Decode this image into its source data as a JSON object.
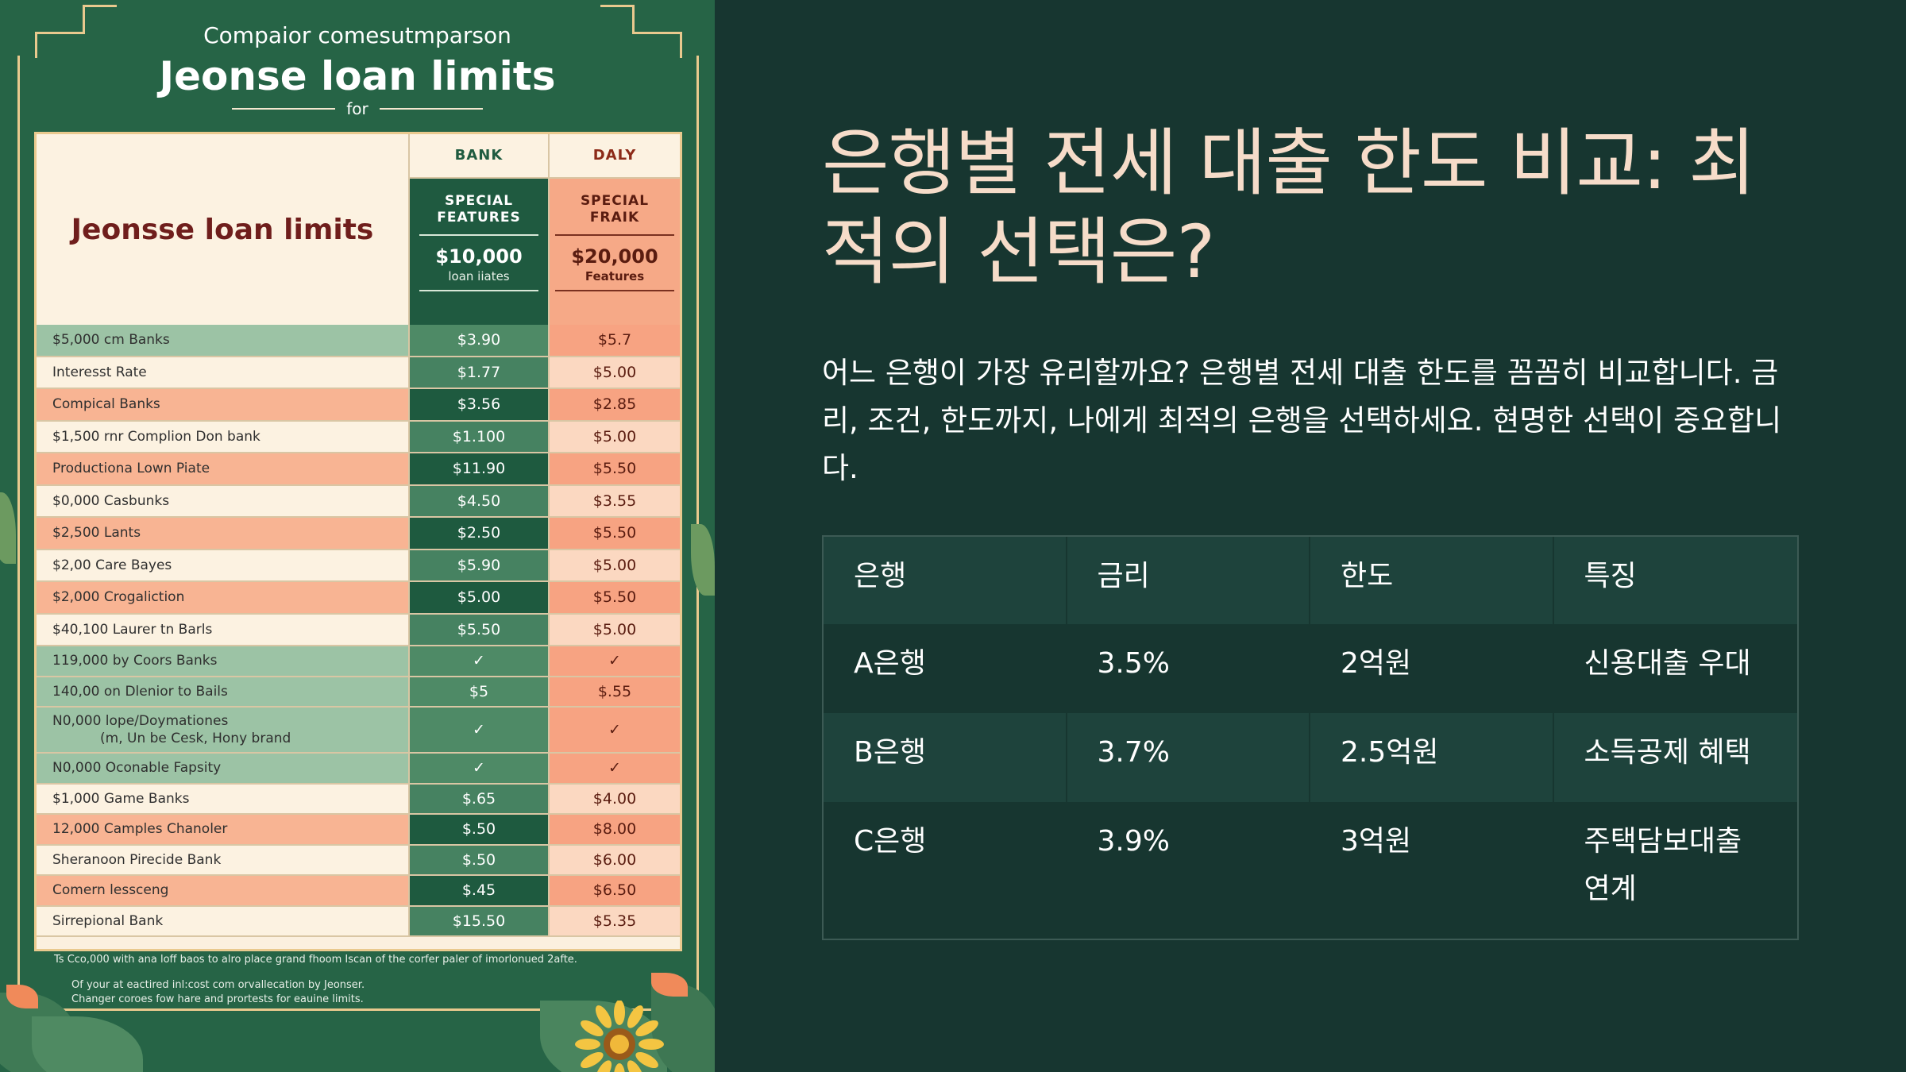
{
  "poster": {
    "subtitle": "Compaior comesutmparson",
    "title": "Jeonse loan limits",
    "for_text": "for",
    "table_title": "Jeonsse loan limits",
    "columns": {
      "bank": {
        "name": "BANK",
        "feature": "SPECIAL FEATURES",
        "amount": "$10,000",
        "note": "loan iiates"
      },
      "daily": {
        "name": "DALY",
        "feature": "SPECIAL FRAIK",
        "amount": "$20,000",
        "note": "Features"
      }
    },
    "rows": [
      {
        "label": "$5,000 cm Banks",
        "bank": "$3.90",
        "daily": "$5.7",
        "style": "green"
      },
      {
        "label": "Interesst Rate",
        "bank": "$1.77",
        "daily": "$5.00",
        "style": "cream"
      },
      {
        "label": "Compical Banks",
        "bank": "$3.56",
        "daily": "$2.85",
        "style": "orange"
      },
      {
        "label": "$1,500 rnr Complion Don bank",
        "bank": "$1.100",
        "daily": "$5.00",
        "style": "cream"
      },
      {
        "label": "Productiona Lown Piate",
        "bank": "$11.90",
        "daily": "$5.50",
        "style": "orange"
      },
      {
        "label": "$0,000 Casbunks",
        "bank": "$4.50",
        "daily": "$3.55",
        "style": "cream"
      },
      {
        "label": "$2,500 Lants",
        "bank": "$2.50",
        "daily": "$5.50",
        "style": "orange"
      },
      {
        "label": "$2,00 Care Bayes",
        "bank": "$5.90",
        "daily": "$5.00",
        "style": "cream"
      },
      {
        "label": "$2,000 Crogaliction",
        "bank": "$5.00",
        "daily": "$5.50",
        "style": "orange"
      },
      {
        "label": "$40,100 Laurer tn Barls",
        "bank": "$5.50",
        "daily": "$5.00",
        "style": "cream"
      },
      {
        "label": "119,000 by Coors Banks",
        "bank": "✓",
        "daily": "✓",
        "style": "green"
      },
      {
        "label": "140,00 on Dlenior to Bails",
        "bank": "$5",
        "daily": "$.55",
        "style": "green"
      },
      {
        "label": "N0,000 lope/Doymationes",
        "label2": "(m, Un be Cesk, Hony brand",
        "bank": "✓",
        "daily": "✓",
        "style": "green"
      },
      {
        "label": "N0,000 Oconable Fapsity",
        "bank": "✓",
        "daily": "✓",
        "style": "green"
      },
      {
        "label": "$1,000 Game Banks",
        "bank": "$.65",
        "daily": "$4.00",
        "style": "cream"
      },
      {
        "label": "12,000 Camples Chanoler",
        "bank": "$.50",
        "daily": "$8.00",
        "style": "orange"
      },
      {
        "label": "Sheranoon Pirecide Bank",
        "bank": "$.50",
        "daily": "$6.00",
        "style": "cream"
      },
      {
        "label": "Comern lessceng",
        "bank": "$.45",
        "daily": "$6.50",
        "style": "orange"
      },
      {
        "label": "Sirrepional Bank",
        "bank": "$15.50",
        "daily": "$5.35",
        "style": "cream"
      }
    ],
    "footnote1": "Ts Cco,000 with ana loff baos to alro place grand fhoom Iscan of the corfer paler of imorlonued 2afte.",
    "footnote2a": "Of your at eactired inl:cost com orvallecation by Jeonser.",
    "footnote2b": "Changer coroes fow hare and prortests for eauine limits."
  },
  "heading": "은행별 전세 대출 한도 비교: 최적의 선택은?",
  "description": "어느 은행이 가장 유리할까요? 은행별 전세 대출 한도를 꼼꼼히 비교합니다. 금리, 조건, 한도까지, 나에게 최적의 은행을 선택하세요. 현명한 선택이 중요합니다.",
  "table": {
    "headers": [
      "은행",
      "금리",
      "한도",
      "특징"
    ],
    "rows": [
      [
        "A은행",
        "3.5%",
        "2억원",
        "신용대출 우대"
      ],
      [
        "B은행",
        "3.7%",
        "2.5억원",
        "소득공제 혜택"
      ],
      [
        "C은행",
        "3.9%",
        "3억원",
        "주택담보대출 연계"
      ]
    ]
  },
  "colors": {
    "background": "#173630",
    "heading": "#f6dcc9",
    "poster_green": "#266446",
    "poster_gold": "#e9c98e"
  }
}
